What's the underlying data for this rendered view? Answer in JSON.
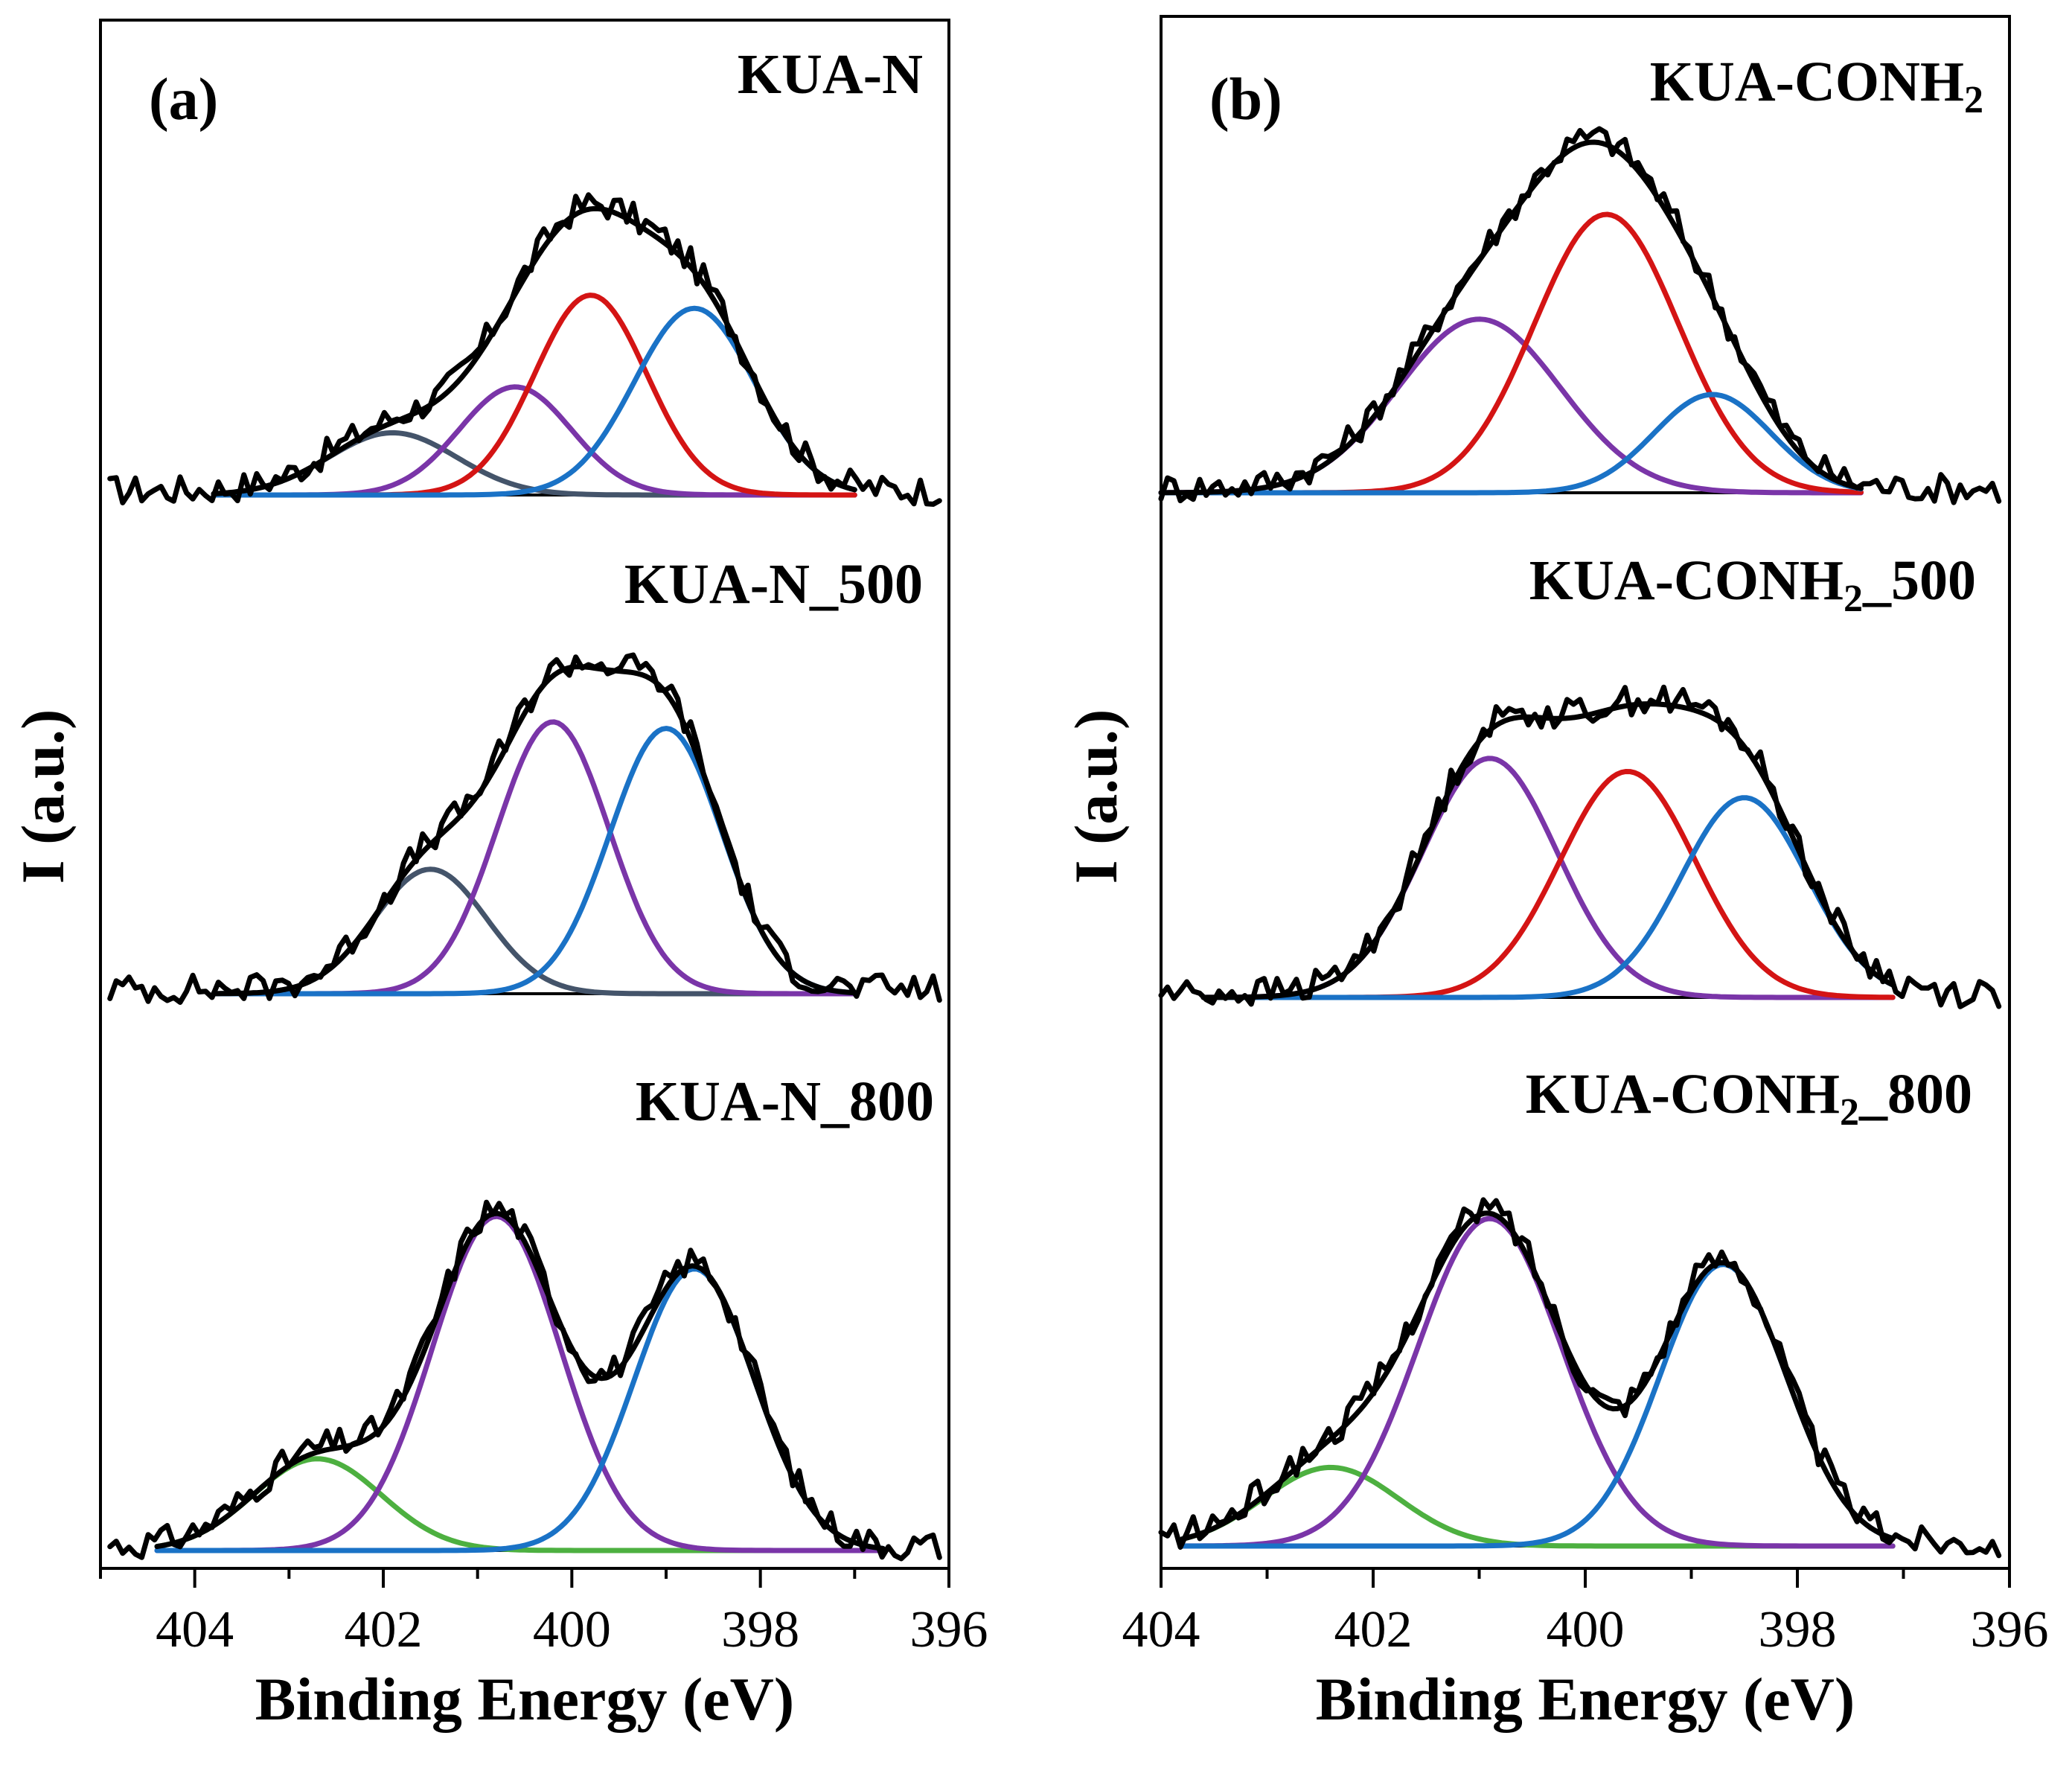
{
  "colors": {
    "raw": "#000000",
    "envelope": "#000000",
    "baseline": "#000000",
    "pyridinic": "#1a72c6",
    "pyrrolic": "#d41414",
    "amine": "#7a35a8",
    "graphitic": "#44546a",
    "oxidized": "#4db040"
  },
  "chart_data": [
    {
      "type": "line",
      "panel_label": "(a)",
      "xlabel": "Binding Energy (eV)",
      "ylabel": "I (a.u.)",
      "xlim": [
        405,
        396
      ],
      "x_ticks": [
        "404",
        "402",
        "400",
        "398",
        "396"
      ],
      "spectra": [
        {
          "name_main": "KUA-N",
          "name_sub": "",
          "name_suffix": "",
          "x_range": [
            403.8,
            397.0
          ],
          "components": [
            {
              "color_key": "graphitic",
              "center": 401.9,
              "height": 0.19,
              "fwhm": 1.6
            },
            {
              "color_key": "amine",
              "center": 400.6,
              "height": 0.33,
              "fwhm": 1.4
            },
            {
              "color_key": "pyrrolic",
              "center": 399.8,
              "height": 0.61,
              "fwhm": 1.4
            },
            {
              "color_key": "pyridinic",
              "center": 398.7,
              "height": 0.57,
              "fwhm": 1.5
            }
          ]
        },
        {
          "name_main": "KUA-N_500",
          "name_sub": "",
          "name_suffix": "",
          "x_range": [
            403.8,
            397.0
          ],
          "components": [
            {
              "color_key": "graphitic",
              "center": 401.5,
              "height": 0.38,
              "fwhm": 1.4
            },
            {
              "color_key": "amine",
              "center": 400.2,
              "height": 0.83,
              "fwhm": 1.4
            },
            {
              "color_key": "pyridinic",
              "center": 399.0,
              "height": 0.81,
              "fwhm": 1.4
            }
          ]
        },
        {
          "name_main": "KUA-N_800",
          "name_sub": "",
          "name_suffix": "",
          "x_range": [
            404.4,
            396.7
          ],
          "components": [
            {
              "color_key": "oxidized",
              "center": 402.7,
              "height": 0.28,
              "fwhm": 1.6
            },
            {
              "color_key": "amine",
              "center": 400.8,
              "height": 1.02,
              "fwhm": 1.6
            },
            {
              "color_key": "pyridinic",
              "center": 398.7,
              "height": 0.86,
              "fwhm": 1.5
            }
          ]
        }
      ]
    },
    {
      "type": "line",
      "panel_label": "(b)",
      "xlabel": "Binding Energy (eV)",
      "ylabel": "I (a.u.)",
      "xlim": [
        404,
        396
      ],
      "x_ticks": [
        "404",
        "402",
        "400",
        "398",
        "396"
      ],
      "spectra": [
        {
          "name_main": "KUA-CONH",
          "name_sub": "2",
          "name_suffix": "",
          "x_range": [
            404.0,
            397.4
          ],
          "components": [
            {
              "color_key": "amine",
              "center": 401.0,
              "height": 0.53,
              "fwhm": 1.8
            },
            {
              "color_key": "pyrrolic",
              "center": 399.8,
              "height": 0.85,
              "fwhm": 1.6
            },
            {
              "color_key": "pyridinic",
              "center": 398.8,
              "height": 0.3,
              "fwhm": 1.3
            }
          ]
        },
        {
          "name_main": "KUA-CONH",
          "name_sub": "2",
          "name_suffix": "_500",
          "x_range": [
            403.6,
            397.1
          ],
          "components": [
            {
              "color_key": "amine",
              "center": 400.9,
              "height": 0.73,
              "fwhm": 1.5
            },
            {
              "color_key": "pyrrolic",
              "center": 399.6,
              "height": 0.69,
              "fwhm": 1.5
            },
            {
              "color_key": "pyridinic",
              "center": 398.5,
              "height": 0.61,
              "fwhm": 1.4
            }
          ]
        },
        {
          "name_main": "KUA-CONH",
          "name_sub": "2",
          "name_suffix": "_800",
          "x_range": [
            403.8,
            397.1
          ],
          "components": [
            {
              "color_key": "oxidized",
              "center": 402.4,
              "height": 0.24,
              "fwhm": 1.5
            },
            {
              "color_key": "amine",
              "center": 400.9,
              "height": 1.0,
              "fwhm": 1.6
            },
            {
              "color_key": "pyridinic",
              "center": 398.7,
              "height": 0.86,
              "fwhm": 1.4
            }
          ]
        }
      ]
    }
  ]
}
